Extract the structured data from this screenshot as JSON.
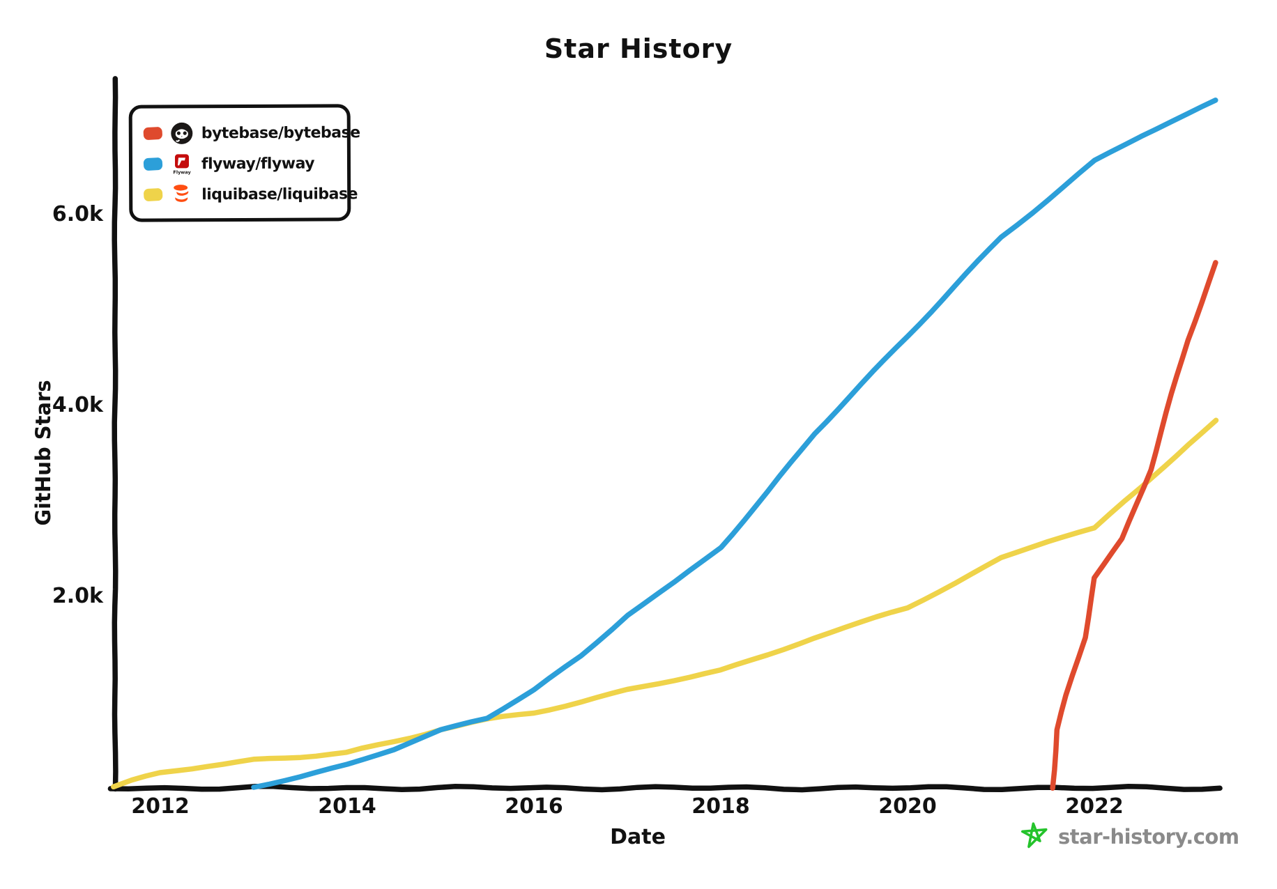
{
  "title": "Star History",
  "legend": {
    "items": [
      {
        "label": "bytebase/bytebase",
        "color": "#DF4A2D",
        "logo": "github-octocat"
      },
      {
        "label": "flyway/flyway",
        "color": "#2C9FD9",
        "logo": "flyway"
      },
      {
        "label": "liquibase/liquibase",
        "color": "#EFD34A",
        "logo": "liquibase"
      }
    ]
  },
  "footer": {
    "brand": "star-history.com",
    "star_color": "#24C32B"
  },
  "colors": {
    "axis": "#111111",
    "footer_text": "#8a8a8a"
  },
  "chart_data": {
    "type": "line",
    "title": "Star History",
    "xlabel": "Date",
    "ylabel": "GitHub Stars",
    "x_ticks": [
      "2012",
      "2014",
      "2016",
      "2018",
      "2020",
      "2022"
    ],
    "y_ticks": [
      {
        "label": "2.0k",
        "value": 2000
      },
      {
        "label": "4.0k",
        "value": 4000
      },
      {
        "label": "6.0k",
        "value": 6000
      }
    ],
    "xlim": [
      2011.5,
      2023.4
    ],
    "ylim": [
      0,
      7400
    ],
    "grid": false,
    "legend_position": "top-left",
    "series": [
      {
        "name": "bytebase/bytebase",
        "color": "#DF4A2D",
        "points": [
          [
            2021.55,
            0
          ],
          [
            2021.6,
            600
          ],
          [
            2021.7,
            950
          ],
          [
            2021.9,
            1580
          ],
          [
            2022.0,
            2190
          ],
          [
            2022.3,
            2590
          ],
          [
            2022.6,
            3340
          ],
          [
            2023.0,
            4690
          ],
          [
            2023.3,
            5490
          ]
        ]
      },
      {
        "name": "flyway/flyway",
        "color": "#2C9FD9",
        "points": [
          [
            2013.0,
            0
          ],
          [
            2013.5,
            110
          ],
          [
            2014.0,
            240
          ],
          [
            2014.5,
            400
          ],
          [
            2015.0,
            600
          ],
          [
            2015.5,
            720
          ],
          [
            2016.0,
            1020
          ],
          [
            2016.5,
            1380
          ],
          [
            2017.0,
            1820
          ],
          [
            2017.5,
            2150
          ],
          [
            2018.0,
            2520
          ],
          [
            2018.5,
            3100
          ],
          [
            2019.0,
            3720
          ],
          [
            2019.5,
            4230
          ],
          [
            2020.0,
            4740
          ],
          [
            2020.5,
            5260
          ],
          [
            2021.0,
            5770
          ],
          [
            2021.5,
            6170
          ],
          [
            2022.0,
            6570
          ],
          [
            2022.5,
            6820
          ],
          [
            2023.0,
            7050
          ],
          [
            2023.3,
            7190
          ]
        ]
      },
      {
        "name": "liquibase/liquibase",
        "color": "#EFD34A",
        "points": [
          [
            2011.5,
            0
          ],
          [
            2011.7,
            60
          ],
          [
            2012.0,
            140
          ],
          [
            2012.5,
            230
          ],
          [
            2013.0,
            290
          ],
          [
            2013.5,
            320
          ],
          [
            2014.0,
            350
          ],
          [
            2014.5,
            480
          ],
          [
            2015.0,
            620
          ],
          [
            2015.5,
            700
          ],
          [
            2016.0,
            780
          ],
          [
            2016.5,
            900
          ],
          [
            2017.0,
            1020
          ],
          [
            2017.5,
            1120
          ],
          [
            2018.0,
            1220
          ],
          [
            2018.5,
            1390
          ],
          [
            2019.0,
            1570
          ],
          [
            2019.5,
            1720
          ],
          [
            2020.0,
            1880
          ],
          [
            2020.5,
            2140
          ],
          [
            2021.0,
            2410
          ],
          [
            2021.5,
            2570
          ],
          [
            2022.0,
            2720
          ],
          [
            2022.5,
            3140
          ],
          [
            2023.0,
            3600
          ],
          [
            2023.3,
            3850
          ]
        ]
      }
    ]
  }
}
